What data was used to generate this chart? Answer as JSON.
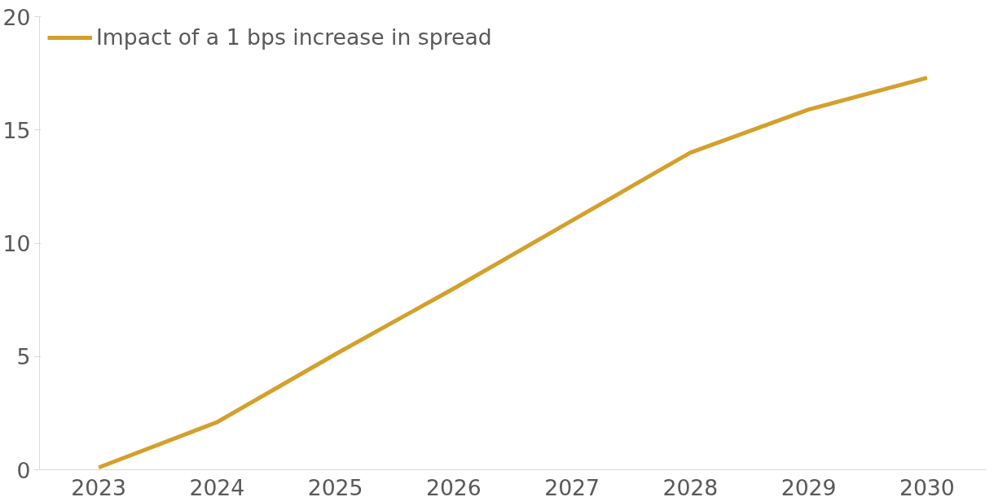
{
  "chart_data": {
    "type": "line",
    "categories": [
      "2023",
      "2024",
      "2025",
      "2026",
      "2027",
      "2028",
      "2029",
      "2030"
    ],
    "series": [
      {
        "name": "Impact of a 1 bps increase in spread",
        "color": "#d4a02c",
        "values": [
          0.1,
          2.1,
          5.1,
          8.0,
          11.0,
          14.0,
          15.9,
          17.3
        ]
      }
    ],
    "ylim": [
      0,
      20
    ],
    "yticks": [
      0,
      5,
      10,
      15,
      20
    ],
    "grid": false,
    "legend": "top left",
    "marker": "none",
    "line_style": "solid"
  }
}
